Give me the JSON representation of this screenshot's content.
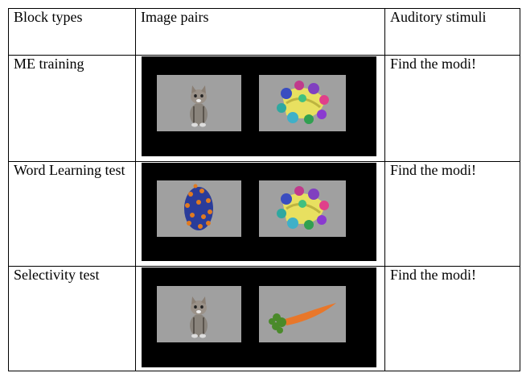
{
  "table": {
    "header": [
      "Block types",
      "Image pairs",
      "Auditory stimuli"
    ],
    "rows": [
      {
        "block_type": "ME training",
        "auditory_stimulus": "Find the modi!"
      },
      {
        "block_type": "Word Learning test",
        "auditory_stimulus": "Find the modi!"
      },
      {
        "block_type": "Selectivity test",
        "auditory_stimulus": "Find the modi!"
      }
    ]
  }
}
